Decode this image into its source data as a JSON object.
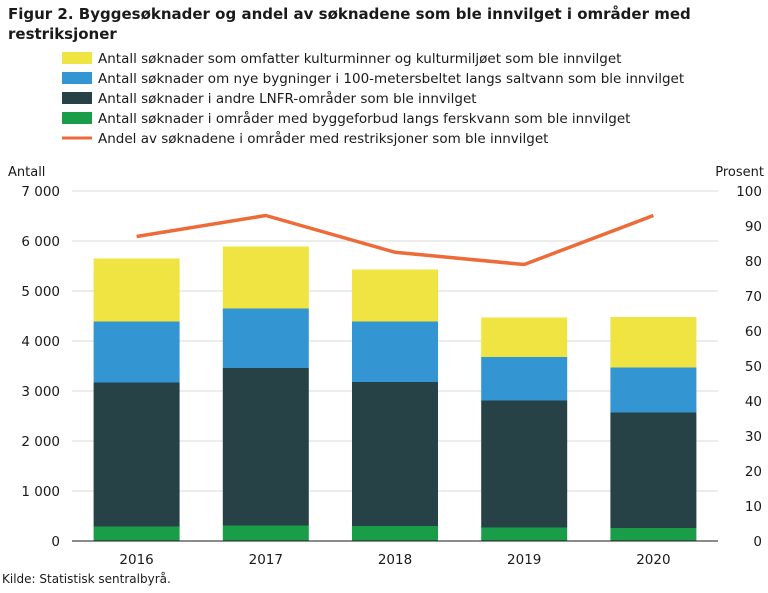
{
  "figure": {
    "title": "Figur 2. Byggesøknader og andel av søknadene som ble innvilget i områder med restriksjoner",
    "source": "Kilde: Statistisk sentralbyrå."
  },
  "chart_data": {
    "type": "bar",
    "stacked": true,
    "title": "Figur 2. Byggesøknader og andel av søknadene som ble innvilget i områder med restriksjoner",
    "categories": [
      "2016",
      "2017",
      "2018",
      "2019",
      "2020"
    ],
    "ylabel": "Antall",
    "y2label": "Prosent",
    "ylim": [
      0,
      7000
    ],
    "y2lim": [
      0,
      100
    ],
    "yticks": [
      "0",
      "1 000",
      "2 000",
      "3 000",
      "4 000",
      "5 000",
      "6 000",
      "7 000"
    ],
    "y2ticks": [
      "0",
      "10",
      "20",
      "30",
      "40",
      "50",
      "60",
      "70",
      "80",
      "90",
      "100"
    ],
    "grid": true,
    "legend_position": "top",
    "series": [
      {
        "name": "Antall søknader i områder med byggeforbud langs ferskvann som ble innvilget",
        "type": "bar",
        "color": "#1a9d49",
        "values": [
          290,
          310,
          300,
          270,
          260
        ]
      },
      {
        "name": "Antall søknader i andre LNFR-områder som ble innvilget",
        "type": "bar",
        "color": "#274247",
        "values": [
          2880,
          3150,
          2880,
          2540,
          2310
        ]
      },
      {
        "name": "Antall søknader om nye bygninger i 100-metersbeltet langs saltvann som ble innvilget",
        "type": "bar",
        "color": "#3396d2",
        "values": [
          1220,
          1190,
          1210,
          870,
          900
        ]
      },
      {
        "name": "Antall søknader som omfatter kulturminner og kulturmiljøet som ble innvilget",
        "type": "bar",
        "color": "#f0e442",
        "values": [
          1260,
          1240,
          1040,
          790,
          1010
        ]
      },
      {
        "name": "Andel av søknadene i områder med restriksjoner som ble innvilget",
        "type": "line",
        "axis": "right",
        "color": "#ed6b38",
        "values": [
          87,
          93,
          82.5,
          79,
          93
        ]
      }
    ],
    "legend_order": [
      3,
      2,
      1,
      0,
      4
    ]
  }
}
